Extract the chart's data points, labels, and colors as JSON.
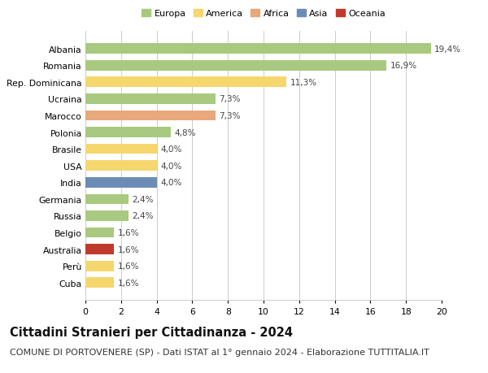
{
  "countries": [
    "Albania",
    "Romania",
    "Rep. Dominicana",
    "Ucraina",
    "Marocco",
    "Polonia",
    "Brasile",
    "USA",
    "India",
    "Germania",
    "Russia",
    "Belgio",
    "Australia",
    "Perù",
    "Cuba"
  ],
  "values": [
    19.4,
    16.9,
    11.3,
    7.3,
    7.3,
    4.8,
    4.0,
    4.0,
    4.0,
    2.4,
    2.4,
    1.6,
    1.6,
    1.6,
    1.6
  ],
  "labels": [
    "19,4%",
    "16,9%",
    "11,3%",
    "7,3%",
    "7,3%",
    "4,8%",
    "4,0%",
    "4,0%",
    "4,0%",
    "2,4%",
    "2,4%",
    "1,6%",
    "1,6%",
    "1,6%",
    "1,6%"
  ],
  "colors": [
    "#a8c97f",
    "#a8c97f",
    "#f5d76e",
    "#a8c97f",
    "#e8a87c",
    "#a8c97f",
    "#f5d76e",
    "#f5d76e",
    "#6b8db5",
    "#a8c97f",
    "#a8c97f",
    "#a8c97f",
    "#c0392b",
    "#f5d76e",
    "#f5d76e"
  ],
  "legend": {
    "Europa": "#a8c97f",
    "America": "#f5d76e",
    "Africa": "#e8a87c",
    "Asia": "#6b8db5",
    "Oceania": "#c0392b"
  },
  "xlim": [
    0,
    20
  ],
  "xticks": [
    0,
    2,
    4,
    6,
    8,
    10,
    12,
    14,
    16,
    18,
    20
  ],
  "title": "Cittadini Stranieri per Cittadinanza - 2024",
  "subtitle": "COMUNE DI PORTOVENERE (SP) - Dati ISTAT al 1° gennaio 2024 - Elaborazione TUTTITALIA.IT",
  "title_fontsize": 10.5,
  "subtitle_fontsize": 8.0,
  "label_fontsize": 7.5,
  "ytick_fontsize": 7.8,
  "xtick_fontsize": 7.8,
  "legend_fontsize": 8.0,
  "bar_height": 0.62,
  "background_color": "#ffffff",
  "grid_color": "#cccccc"
}
